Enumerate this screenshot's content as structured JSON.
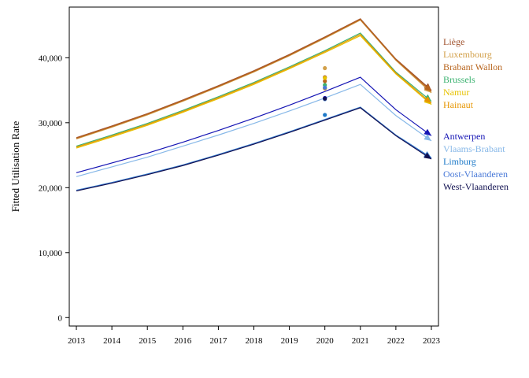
{
  "chart_data": {
    "type": "line",
    "title": "",
    "xlabel": "",
    "ylabel": "Fitted Utilisation Rate",
    "x": [
      2013,
      2014,
      2015,
      2016,
      2017,
      2018,
      2019,
      2020,
      2021,
      2022,
      2023
    ],
    "xlim": [
      2012.8,
      2023.2
    ],
    "ylim": [
      -1300,
      47800
    ],
    "yticks": [
      0,
      10000,
      20000,
      30000,
      40000
    ],
    "ytick_labels": [
      "0",
      "10,000",
      "20,000",
      "30,000",
      "40,000"
    ],
    "xtick_labels": [
      "2013",
      "2014",
      "2015",
      "2016",
      "2017",
      "2018",
      "2019",
      "2020",
      "2021",
      "2022",
      "2023"
    ],
    "grid": false,
    "legend_position": "right",
    "series": [
      {
        "name": "Liège",
        "color": "#a0522d",
        "values": [
          27700,
          29500,
          31400,
          33500,
          35700,
          38000,
          40500,
          43200,
          46000,
          39800,
          35000
        ],
        "point_2020": 37000
      },
      {
        "name": "Luxembourg",
        "color": "#d2a04a",
        "values": [
          27500,
          29300,
          31200,
          33300,
          35500,
          37800,
          40300,
          43000,
          45800,
          39600,
          34600
        ],
        "point_2020": 38400
      },
      {
        "name": "Brabant Wallon",
        "color": "#b8651e",
        "values": [
          27600,
          29400,
          31300,
          33400,
          35600,
          37900,
          40400,
          43100,
          45900,
          39700,
          34800
        ],
        "point_2020": 36400
      },
      {
        "name": "Brussels",
        "color": "#3cb371",
        "values": [
          26400,
          28100,
          29900,
          31900,
          34000,
          36200,
          38600,
          41100,
          43800,
          37800,
          33300
        ],
        "point_2020": 35800
      },
      {
        "name": "Namur",
        "color": "#e6c200",
        "values": [
          26100,
          27800,
          29600,
          31600,
          33700,
          35900,
          38300,
          40800,
          43400,
          37500,
          32800
        ],
        "point_2020": 36900
      },
      {
        "name": "Hainaut",
        "color": "#e69500",
        "values": [
          26250,
          27950,
          29750,
          31750,
          33850,
          36050,
          38450,
          40950,
          43600,
          37650,
          33000
        ],
        "point_2020": 35300
      },
      {
        "name": "Antwerpen",
        "color": "#1414b4",
        "values": [
          22300,
          23800,
          25300,
          27000,
          28800,
          30700,
          32700,
          34800,
          37000,
          32000,
          28000
        ],
        "point_2020": 33800
      },
      {
        "name": "Vlaams-Brabant",
        "color": "#87b8e8",
        "values": [
          21700,
          23200,
          24700,
          26400,
          28100,
          29900,
          31800,
          33800,
          35900,
          31100,
          27200
        ],
        "point_2020": 33600
      },
      {
        "name": "Limburg",
        "color": "#1e7ac8",
        "values": [
          19600,
          20800,
          22100,
          23500,
          25100,
          26800,
          28600,
          30500,
          32400,
          28100,
          24600
        ],
        "point_2020": 31200
      },
      {
        "name": "Oost-Vlaanderen",
        "color": "#4a7ad8",
        "values": [
          19550,
          20750,
          22050,
          23450,
          25050,
          26750,
          28550,
          30450,
          32350,
          28050,
          24500
        ],
        "point_2020": 35400
      },
      {
        "name": "West-Vlaanderen",
        "color": "#101050",
        "values": [
          19500,
          20700,
          22000,
          23400,
          25000,
          26700,
          28500,
          30400,
          32300,
          28000,
          24400
        ],
        "point_2020": 33700
      }
    ]
  }
}
